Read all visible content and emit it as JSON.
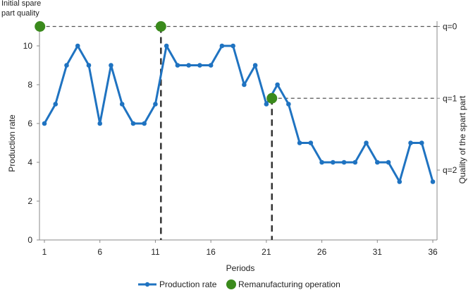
{
  "chart_data": {
    "type": "line",
    "title": "",
    "corner_label": [
      "Initial spare",
      "part quality"
    ],
    "xlabel": "Periods",
    "ylabel": "Production rate",
    "y2label": "Quality of the spart part",
    "xlim": [
      1,
      36
    ],
    "ylim": [
      0,
      11
    ],
    "x_ticks": [
      1,
      6,
      11,
      16,
      21,
      26,
      31,
      36
    ],
    "y_ticks": [
      0,
      2,
      4,
      6,
      8,
      10
    ],
    "grid": false,
    "legend_position": "bottom",
    "series": [
      {
        "name": "Production rate",
        "color": "#1f73c1",
        "x": [
          1,
          2,
          3,
          4,
          5,
          6,
          7,
          8,
          9,
          10,
          11,
          12,
          13,
          14,
          15,
          16,
          17,
          18,
          19,
          20,
          21,
          22,
          23,
          24,
          25,
          26,
          27,
          28,
          29,
          30,
          31,
          32,
          33,
          34,
          35,
          36
        ],
        "values": [
          6,
          7,
          9,
          10,
          9,
          6,
          9,
          7,
          6,
          6,
          7,
          10,
          9,
          9,
          9,
          9,
          10,
          10,
          8,
          9,
          7,
          8,
          7,
          5,
          5,
          4,
          4,
          4,
          4,
          5,
          4,
          4,
          3,
          5,
          5,
          3
        ]
      }
    ],
    "remanufacturing": {
      "name": "Remanufacturing operation",
      "color": "#3a8a1c",
      "points": [
        {
          "x": 0.6,
          "y": 11
        },
        {
          "x": 11.5,
          "y": 11
        },
        {
          "x": 21.5,
          "y": 7.3
        }
      ]
    },
    "quality_levels": [
      {
        "label": "q=0",
        "y": 11,
        "x_from": 0.6
      },
      {
        "label": "q=1",
        "y": 7.3,
        "x_from": 21.5
      },
      {
        "label": "q=2",
        "y": 3.6,
        "x_from": null
      }
    ]
  }
}
